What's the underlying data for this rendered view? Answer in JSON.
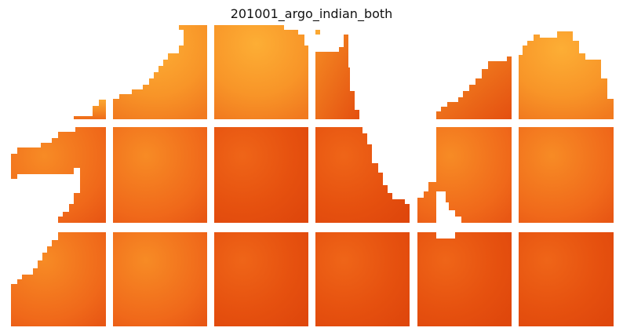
{
  "title": "201001_argo_indian_both",
  "colors": {
    "background": "#ffffff",
    "light": "#fba832",
    "mid": "#f37920",
    "dark": "#e0480d"
  }
}
